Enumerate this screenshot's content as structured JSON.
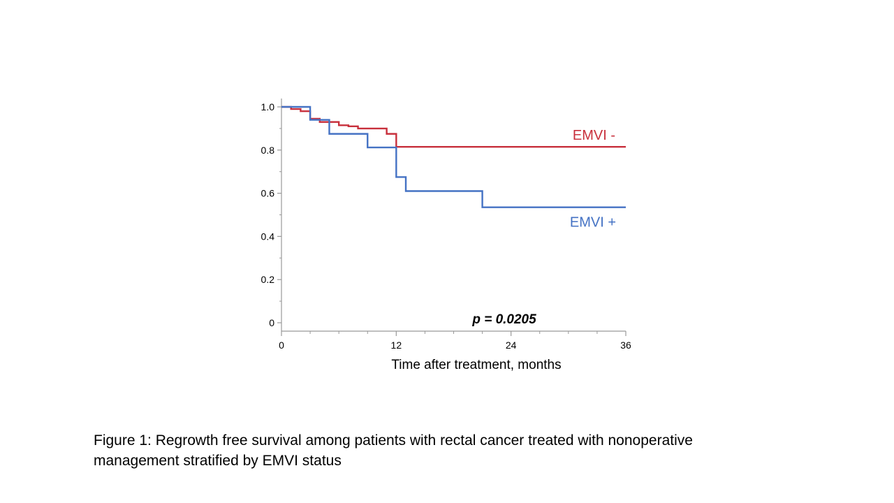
{
  "chart_data": {
    "type": "line",
    "step": true,
    "xlabel": "Time after treatment, months",
    "ylabel": "",
    "xlim": [
      0,
      36
    ],
    "ylim": [
      0,
      1.0
    ],
    "xticks": [
      0,
      12,
      24,
      36
    ],
    "xtick_labels": [
      "0",
      "12",
      "24",
      "36"
    ],
    "yticks": [
      0,
      0.2,
      0.4,
      0.6,
      0.8,
      1.0
    ],
    "ytick_labels": [
      "0",
      "0.2",
      "0.4",
      "0.6",
      "0.8",
      "1.0"
    ],
    "grid": false,
    "annotation": "p = 0.0205",
    "series": [
      {
        "name": "EMVI -",
        "color": "#c8303c",
        "x": [
          0,
          1,
          2,
          3,
          4,
          6,
          7,
          8,
          11,
          12,
          36
        ],
        "y": [
          1.0,
          0.99,
          0.98,
          0.945,
          0.93,
          0.915,
          0.91,
          0.9,
          0.875,
          0.815,
          0.815
        ]
      },
      {
        "name": "EMVI +",
        "color": "#4472c4",
        "x": [
          0,
          3,
          5,
          9,
          12,
          13,
          21,
          36
        ],
        "y": [
          1.0,
          0.94,
          0.875,
          0.812,
          0.675,
          0.61,
          0.535,
          0.535
        ]
      }
    ]
  },
  "caption": {
    "line1": "Figure 1: Regrowth free survival among patients with rectal cancer treated with nonoperative",
    "line2": "management stratified by EMVI status"
  }
}
